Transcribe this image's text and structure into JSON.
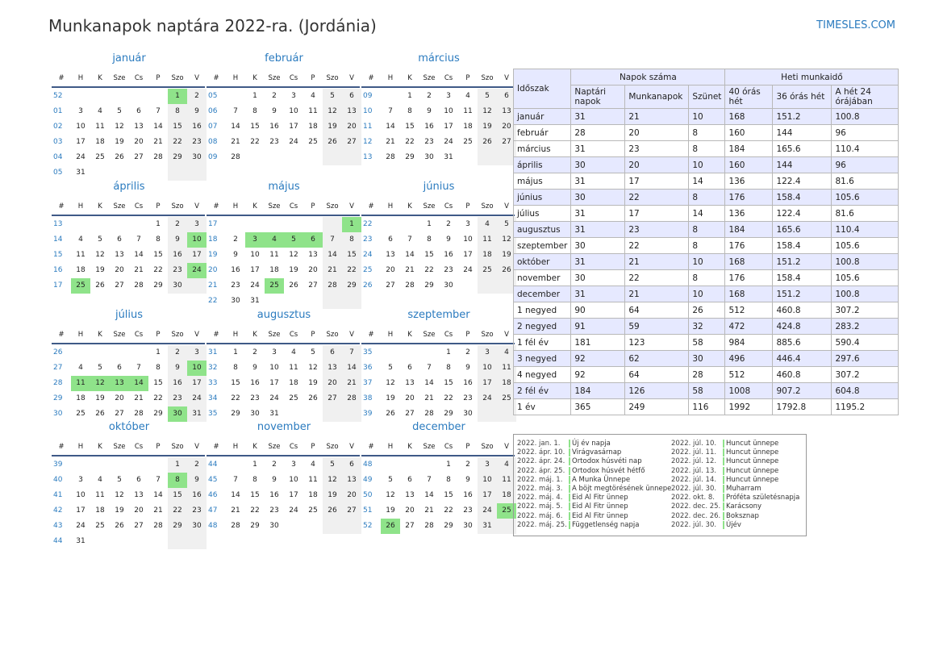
{
  "header": {
    "title": "Munkanapok naptára 2022-ra. (Jordánia)",
    "site": "TIMESLES.COM"
  },
  "calendar": {
    "day_headers": [
      "#",
      "H",
      "K",
      "Sze",
      "Cs",
      "P",
      "Szo",
      "V"
    ],
    "months": [
      {
        "name": "január",
        "start": 5,
        "days": 31,
        "weeks": [
          "52",
          "01",
          "02",
          "03",
          "04",
          "05"
        ],
        "holidays": [
          1
        ]
      },
      {
        "name": "február",
        "start": 1,
        "days": 28,
        "weeks": [
          "05",
          "06",
          "07",
          "08",
          "09"
        ],
        "holidays": []
      },
      {
        "name": "március",
        "start": 1,
        "days": 31,
        "weeks": [
          "09",
          "10",
          "11",
          "12",
          "13"
        ],
        "holidays": []
      },
      {
        "name": "április",
        "start": 4,
        "days": 30,
        "weeks": [
          "13",
          "14",
          "15",
          "16",
          "17"
        ],
        "holidays": [
          10,
          24,
          25
        ]
      },
      {
        "name": "május",
        "start": 6,
        "days": 31,
        "weeks": [
          "17",
          "18",
          "19",
          "20",
          "21",
          "22"
        ],
        "holidays": [
          1,
          3,
          4,
          5,
          6,
          25
        ]
      },
      {
        "name": "június",
        "start": 2,
        "days": 30,
        "weeks": [
          "22",
          "23",
          "24",
          "25",
          "26"
        ],
        "holidays": []
      },
      {
        "name": "július",
        "start": 4,
        "days": 31,
        "weeks": [
          "26",
          "27",
          "28",
          "29",
          "30"
        ],
        "holidays": [
          10,
          11,
          12,
          13,
          14,
          30
        ]
      },
      {
        "name": "augusztus",
        "start": 0,
        "days": 31,
        "weeks": [
          "31",
          "32",
          "33",
          "34",
          "35"
        ],
        "holidays": []
      },
      {
        "name": "szeptember",
        "start": 3,
        "days": 30,
        "weeks": [
          "35",
          "36",
          "37",
          "38",
          "39"
        ],
        "holidays": []
      },
      {
        "name": "október",
        "start": 5,
        "days": 31,
        "weeks": [
          "39",
          "40",
          "41",
          "42",
          "43",
          "44"
        ],
        "holidays": [
          8
        ]
      },
      {
        "name": "november",
        "start": 1,
        "days": 30,
        "weeks": [
          "44",
          "45",
          "46",
          "47",
          "48"
        ],
        "holidays": []
      },
      {
        "name": "december",
        "start": 3,
        "days": 31,
        "weeks": [
          "48",
          "49",
          "50",
          "51",
          "52"
        ],
        "holidays": [
          25,
          26
        ]
      }
    ]
  },
  "stats": {
    "h_period": "Időszak",
    "h_days": "Napok száma",
    "h_hours": "Heti munkaidő",
    "h_cal": "Naptári napok",
    "h_work": "Munkanapok",
    "h_off": "Szünet",
    "h_40": "40 órás hét",
    "h_36": "36 órás hét",
    "h_24": "A hét 24 órájában",
    "rows": [
      [
        "január",
        "31",
        "21",
        "10",
        "168",
        "151.2",
        "100.8"
      ],
      [
        "február",
        "28",
        "20",
        "8",
        "160",
        "144",
        "96"
      ],
      [
        "március",
        "31",
        "23",
        "8",
        "184",
        "165.6",
        "110.4"
      ],
      [
        "április",
        "30",
        "20",
        "10",
        "160",
        "144",
        "96"
      ],
      [
        "május",
        "31",
        "17",
        "14",
        "136",
        "122.4",
        "81.6"
      ],
      [
        "június",
        "30",
        "22",
        "8",
        "176",
        "158.4",
        "105.6"
      ],
      [
        "július",
        "31",
        "17",
        "14",
        "136",
        "122.4",
        "81.6"
      ],
      [
        "augusztus",
        "31",
        "23",
        "8",
        "184",
        "165.6",
        "110.4"
      ],
      [
        "szeptember",
        "30",
        "22",
        "8",
        "176",
        "158.4",
        "105.6"
      ],
      [
        "október",
        "31",
        "21",
        "10",
        "168",
        "151.2",
        "100.8"
      ],
      [
        "november",
        "30",
        "22",
        "8",
        "176",
        "158.4",
        "105.6"
      ],
      [
        "december",
        "31",
        "21",
        "10",
        "168",
        "151.2",
        "100.8"
      ],
      [
        "1 negyed",
        "90",
        "64",
        "26",
        "512",
        "460.8",
        "307.2"
      ],
      [
        "2 negyed",
        "91",
        "59",
        "32",
        "472",
        "424.8",
        "283.2"
      ],
      [
        "1 fél év",
        "181",
        "123",
        "58",
        "984",
        "885.6",
        "590.4"
      ],
      [
        "3 negyed",
        "92",
        "62",
        "30",
        "496",
        "446.4",
        "297.6"
      ],
      [
        "4 negyed",
        "92",
        "64",
        "28",
        "512",
        "460.8",
        "307.2"
      ],
      [
        "2 fél év",
        "184",
        "126",
        "58",
        "1008",
        "907.2",
        "604.8"
      ],
      [
        "1 év",
        "365",
        "249",
        "116",
        "1992",
        "1792.8",
        "1195.2"
      ]
    ]
  },
  "holidays_left": [
    {
      "date": "2022. jan. 1.",
      "name": "Új év napja"
    },
    {
      "date": "2022. ápr. 10.",
      "name": "Virágvasárnap"
    },
    {
      "date": "2022. ápr. 24.",
      "name": "Ortodox húsvéti nap"
    },
    {
      "date": "2022. ápr. 25.",
      "name": "Ortodox húsvét hétfő"
    },
    {
      "date": "2022. máj. 1.",
      "name": "A Munka Ünnepe"
    },
    {
      "date": "2022. máj. 3.",
      "name": "A böjt megtörésének ünnepe"
    },
    {
      "date": "2022. máj. 4.",
      "name": "Eid Al Fitr ünnep"
    },
    {
      "date": "2022. máj. 5.",
      "name": "Eid Al Fitr ünnep"
    },
    {
      "date": "2022. máj. 6.",
      "name": "Eid Al Fitr ünnep"
    },
    {
      "date": "2022. máj. 25.",
      "name": "Függetlenség napja"
    }
  ],
  "holidays_right": [
    {
      "date": "2022. júl. 10.",
      "name": "Huncut ünnepe"
    },
    {
      "date": "2022. júl. 11.",
      "name": "Huncut ünnepe"
    },
    {
      "date": "2022. júl. 12.",
      "name": "Huncut ünnepe"
    },
    {
      "date": "2022. júl. 13.",
      "name": "Huncut ünnepe"
    },
    {
      "date": "2022. júl. 14.",
      "name": "Huncut ünnepe"
    },
    {
      "date": "2022. júl. 30.",
      "name": "Muharram"
    },
    {
      "date": "2022. okt. 8.",
      "name": "Próféta születésnapja"
    },
    {
      "date": "2022. dec. 25.",
      "name": "Karácsony"
    },
    {
      "date": "2022. dec. 26.",
      "name": "Boksznap"
    },
    {
      "date": "2022. júl. 30.",
      "name": "Újév"
    }
  ]
}
